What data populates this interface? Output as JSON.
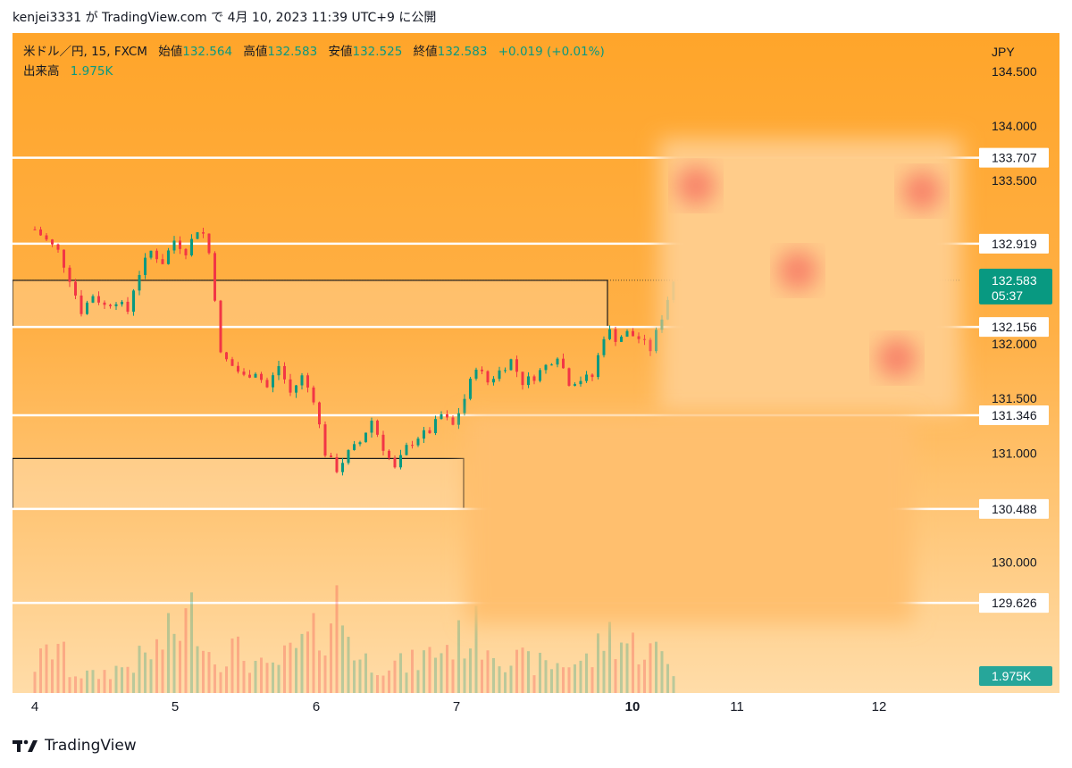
{
  "publish_line": "kenjei3331 が TradingView.com で 4月 10, 2023 11:39 UTC+9 に公開",
  "legend": {
    "symbol": "米ドル／円, 15, FXCM",
    "open_label": "始値",
    "open_value": "132.564",
    "high_label": "高値",
    "high_value": "132.583",
    "low_label": "安値",
    "low_value": "132.525",
    "close_label": "終値",
    "close_value": "132.583",
    "change": "+0.019 (+0.01%)",
    "volume_label": "出来高",
    "volume_value": "1.975K"
  },
  "footer": {
    "brand": "TradingView"
  },
  "colors": {
    "up": "#089981",
    "down": "#f23645",
    "accent": "#ffa52a"
  },
  "chart_data": {
    "type": "candlestick",
    "currency_label": "JPY",
    "symbol": "米ドル／円",
    "interval": "15",
    "source": "FXCM",
    "y_ticks": [
      134.5,
      134.0,
      133.5,
      132.0,
      131.5,
      131.0,
      130.0
    ],
    "ylim": [
      128.8,
      134.85
    ],
    "x_ticks": [
      "4",
      "5",
      "6",
      "7",
      "10",
      "11",
      "12"
    ],
    "horizontal_levels": [
      {
        "label": "133.707",
        "value": 133.707
      },
      {
        "label": "132.919",
        "value": 132.919
      },
      {
        "label": "132.156",
        "value": 132.156
      },
      {
        "label": "131.346",
        "value": 131.346
      },
      {
        "label": "130.488",
        "value": 130.488
      },
      {
        "label": "129.626",
        "value": 129.626
      }
    ],
    "zones": [
      {
        "from": 132.156,
        "to": 132.583
      },
      {
        "from": 130.488,
        "to": 130.95
      }
    ],
    "last_price": {
      "label": "132.583",
      "countdown": "05:37"
    },
    "last_volume": "1.975K",
    "price_path": [
      [
        0.0,
        133.05
      ],
      [
        1.0,
        132.85
      ],
      [
        1.5,
        132.6
      ],
      [
        2.0,
        132.3
      ],
      [
        2.5,
        132.45
      ],
      [
        3.0,
        132.35
      ],
      [
        3.5,
        132.4
      ],
      [
        4.0,
        132.3
      ],
      [
        4.3,
        132.55
      ],
      [
        4.6,
        132.7
      ],
      [
        5.0,
        132.85
      ],
      [
        5.5,
        132.75
      ],
      [
        6.0,
        132.95
      ],
      [
        6.5,
        132.85
      ],
      [
        7.0,
        133.05
      ],
      [
        7.3,
        133.0
      ],
      [
        7.6,
        132.75
      ],
      [
        8.0,
        131.9
      ],
      [
        8.5,
        131.8
      ],
      [
        9.0,
        131.7
      ],
      [
        9.5,
        131.75
      ],
      [
        10.0,
        131.6
      ],
      [
        10.5,
        131.8
      ],
      [
        11.0,
        131.55
      ],
      [
        11.5,
        131.7
      ],
      [
        12.0,
        131.5
      ],
      [
        12.5,
        131.0
      ],
      [
        13.0,
        130.85
      ],
      [
        13.5,
        131.0
      ],
      [
        14.0,
        131.1
      ],
      [
        14.5,
        131.3
      ],
      [
        15.0,
        131.05
      ],
      [
        15.5,
        130.85
      ],
      [
        16.0,
        131.05
      ],
      [
        16.5,
        131.15
      ],
      [
        17.0,
        131.2
      ],
      [
        17.5,
        131.35
      ],
      [
        18.0,
        131.25
      ],
      [
        18.5,
        131.5
      ],
      [
        19.0,
        131.8
      ],
      [
        19.5,
        131.65
      ],
      [
        20.0,
        131.75
      ],
      [
        20.5,
        131.85
      ],
      [
        21.0,
        131.65
      ],
      [
        21.5,
        131.7
      ],
      [
        22.0,
        131.8
      ],
      [
        22.5,
        131.9
      ],
      [
        23.0,
        131.65
      ],
      [
        24.0,
        131.7
      ],
      [
        24.6,
        132.15
      ],
      [
        25.0,
        132.05
      ],
      [
        25.5,
        132.1
      ],
      [
        26.0,
        132.05
      ],
      [
        26.5,
        131.95
      ],
      [
        27.0,
        132.25
      ],
      [
        27.5,
        132.58
      ]
    ],
    "volume_path": [
      [
        0,
        0.25
      ],
      [
        1.0,
        0.45
      ],
      [
        1.5,
        0.2
      ],
      [
        2.5,
        0.15
      ],
      [
        4.0,
        0.25
      ],
      [
        5.0,
        0.35
      ],
      [
        7.0,
        0.75
      ],
      [
        7.6,
        0.3
      ],
      [
        8.5,
        0.4
      ],
      [
        10.0,
        0.2
      ],
      [
        12.0,
        0.5
      ],
      [
        12.5,
        0.6
      ],
      [
        13.0,
        0.8
      ],
      [
        14.0,
        0.3
      ],
      [
        16.0,
        0.25
      ],
      [
        18.0,
        0.45
      ],
      [
        19.0,
        0.55
      ],
      [
        20.5,
        0.3
      ],
      [
        22.0,
        0.25
      ],
      [
        24.0,
        0.3
      ],
      [
        24.6,
        0.55
      ],
      [
        25.5,
        0.45
      ],
      [
        27.0,
        0.35
      ],
      [
        27.5,
        0.2
      ]
    ]
  }
}
